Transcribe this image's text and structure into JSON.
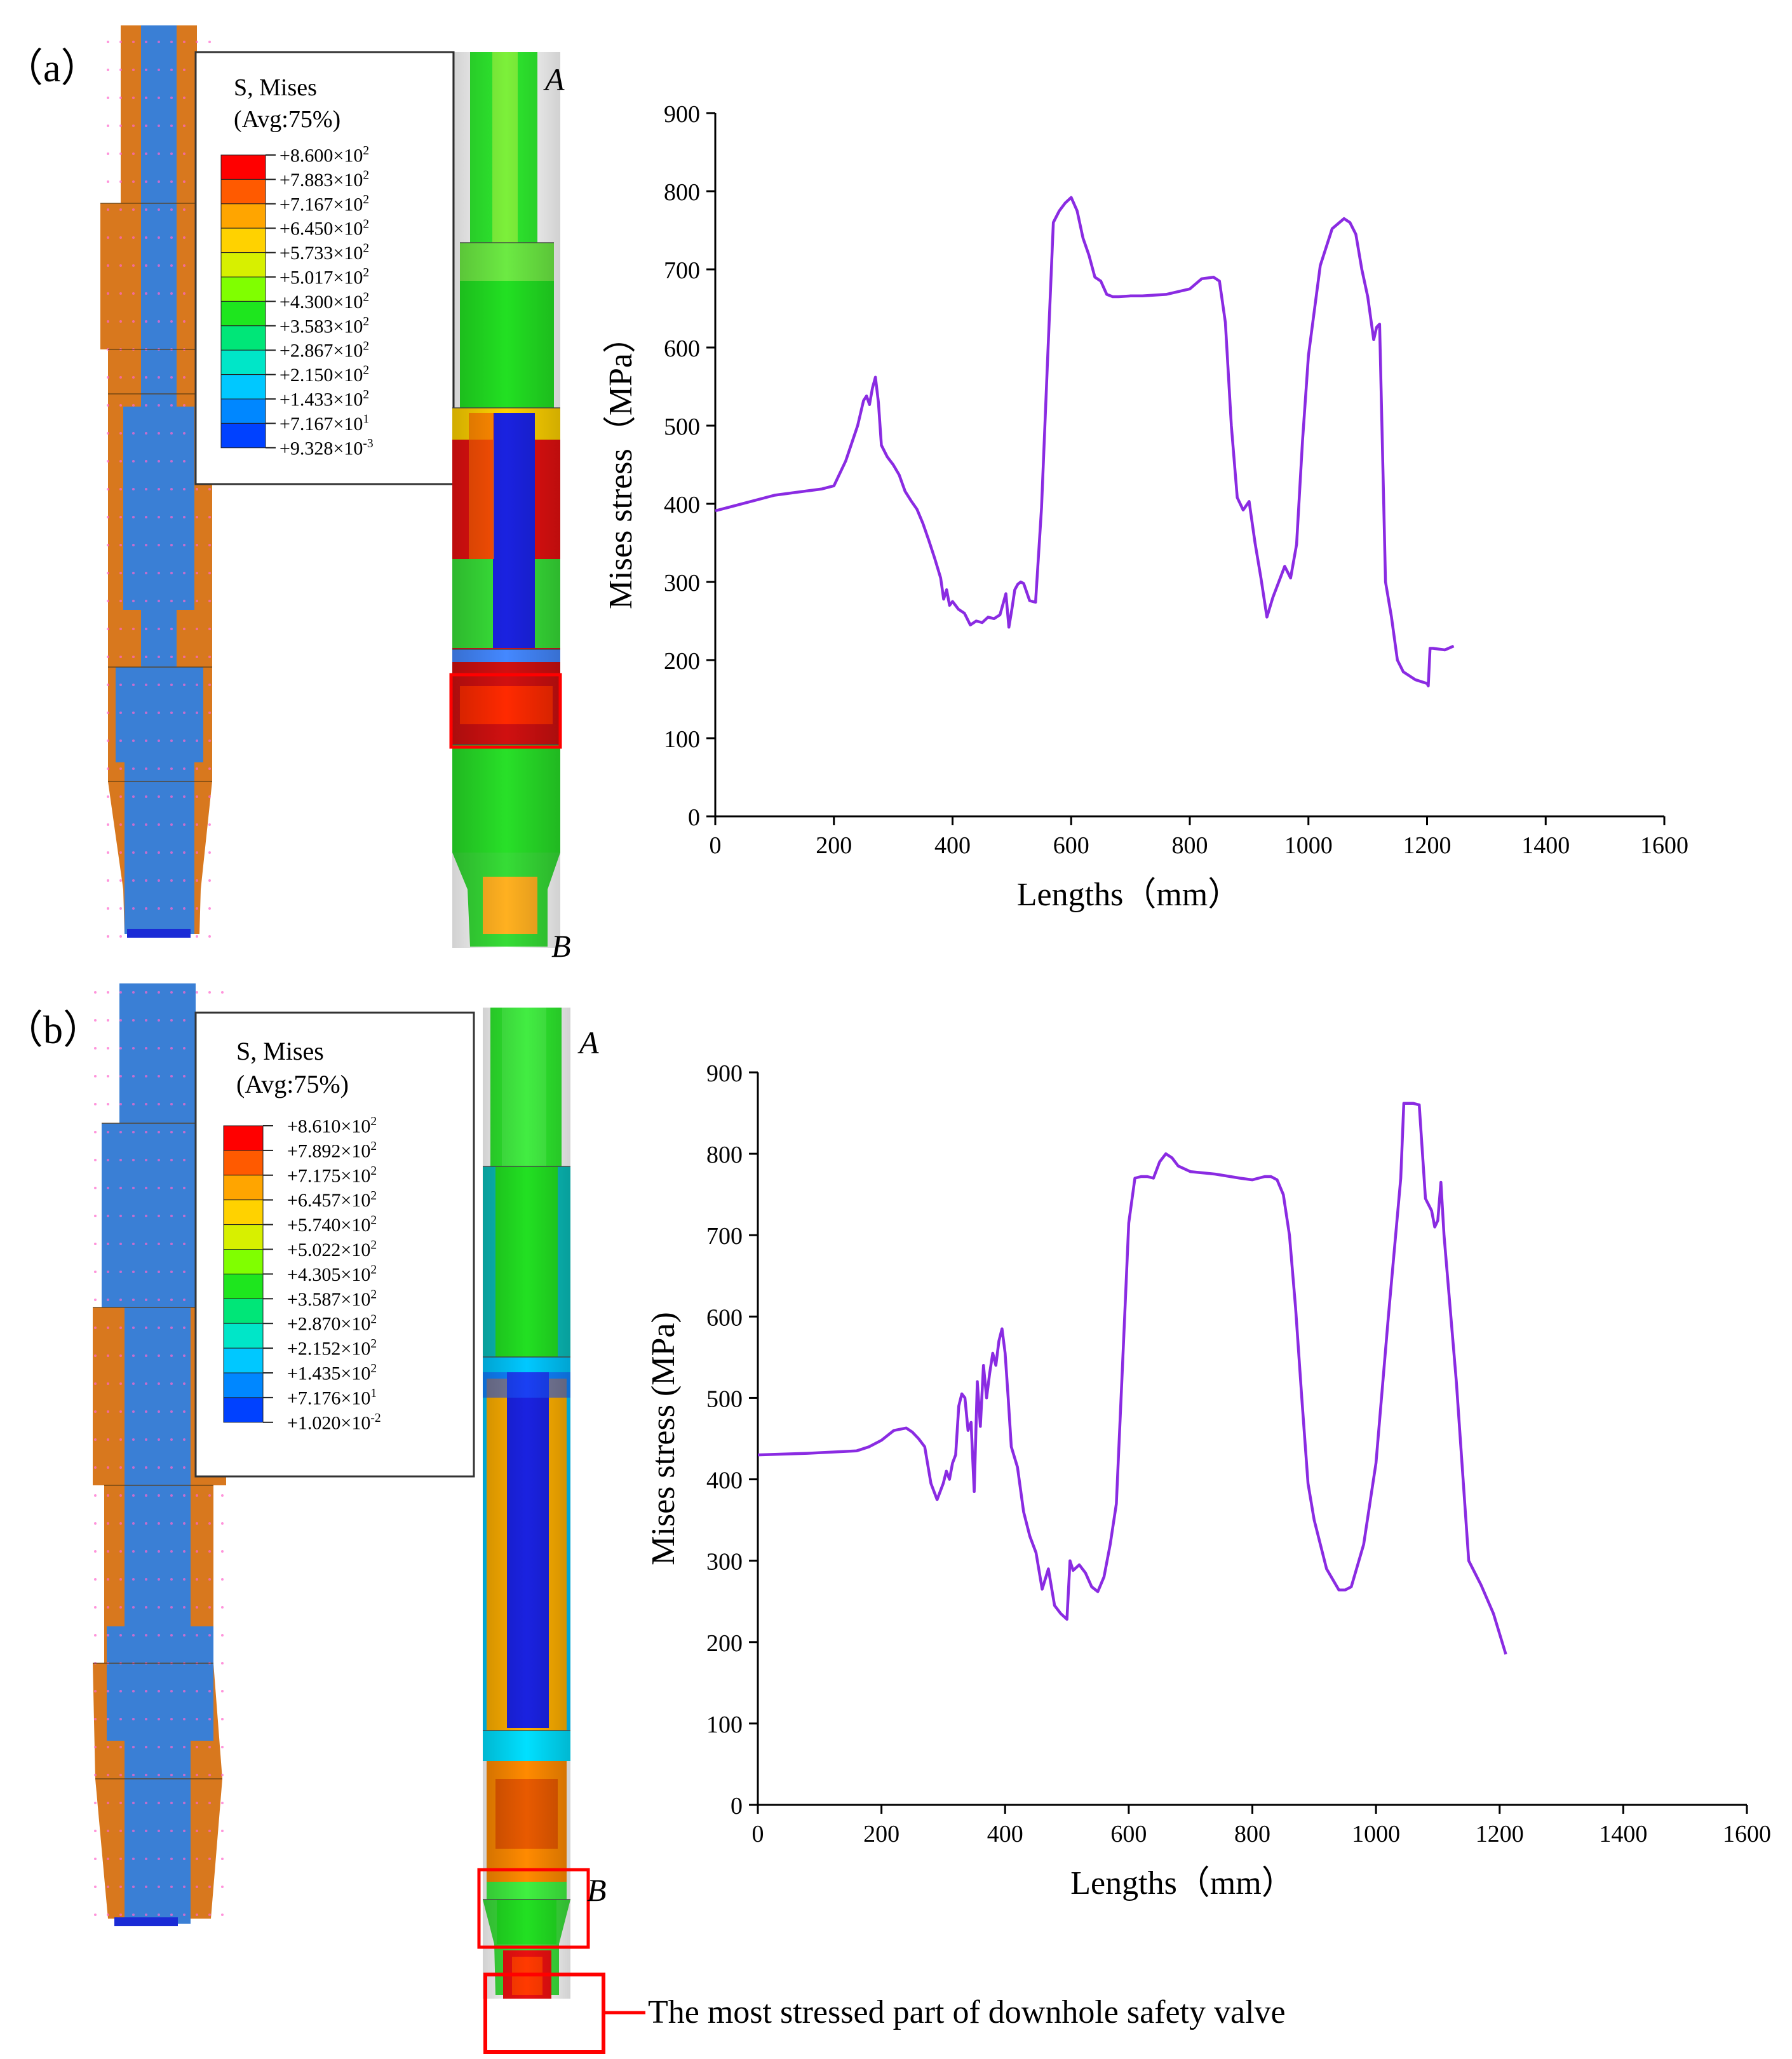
{
  "panels": [
    {
      "id": "a",
      "label": "（a）",
      "legend": {
        "title_line1": "S, Mises",
        "title_line2": "(Avg:75%)",
        "entries": [
          {
            "m": "+8.600×10",
            "e": "2"
          },
          {
            "m": "+7.883×10",
            "e": "2"
          },
          {
            "m": "+7.167×10",
            "e": "2"
          },
          {
            "m": "+6.450×10",
            "e": "2"
          },
          {
            "m": "+5.733×10",
            "e": "2"
          },
          {
            "m": "+5.017×10",
            "e": "2"
          },
          {
            "m": "+4.300×10",
            "e": "2"
          },
          {
            "m": "+3.583×10",
            "e": "2"
          },
          {
            "m": "+2.867×10",
            "e": "2"
          },
          {
            "m": "+2.150×10",
            "e": "2"
          },
          {
            "m": "+1.433×10",
            "e": "2"
          },
          {
            "m": "+7.167×10",
            "e": "1"
          },
          {
            "m": "+9.328×10",
            "e": "-3"
          }
        ]
      },
      "point_top": "A",
      "point_bottom": "B"
    },
    {
      "id": "b",
      "label": "（b）",
      "legend": {
        "title_line1": "S, Mises",
        "title_line2": "(Avg:75%)",
        "entries": [
          {
            "m": "+8.610×10",
            "e": "2"
          },
          {
            "m": "+7.892×10",
            "e": "2"
          },
          {
            "m": "+7.175×10",
            "e": "2"
          },
          {
            "m": "+6.457×10",
            "e": "2"
          },
          {
            "m": "+5.740×10",
            "e": "2"
          },
          {
            "m": "+5.022×10",
            "e": "2"
          },
          {
            "m": "+4.305×10",
            "e": "2"
          },
          {
            "m": "+3.587×10",
            "e": "2"
          },
          {
            "m": "+2.870×10",
            "e": "2"
          },
          {
            "m": "+2.152×10",
            "e": "2"
          },
          {
            "m": "+1.435×10",
            "e": "2"
          },
          {
            "m": "+7.176×10",
            "e": "1"
          },
          {
            "m": "+1.020×10",
            "e": "-2"
          }
        ]
      },
      "point_top": "A",
      "point_bottom": "B"
    }
  ],
  "contour_colors": [
    "#ff0000",
    "#ff5a00",
    "#ffa500",
    "#ffd200",
    "#d7f000",
    "#80ff00",
    "#1ee61e",
    "#00e678",
    "#00e6c8",
    "#00c8ff",
    "#0087ff",
    "#0041ff",
    "#0000ff"
  ],
  "annotation": "The most stressed part of downhole safety valve",
  "colors": {
    "line": "#8a2be2",
    "highlight": "#ff0000",
    "mesh_orange": "#d8781e",
    "mesh_blue": "#3a7fd5"
  },
  "chart_data": [
    {
      "type": "line",
      "title": "",
      "xlabel": "Lengths（mm）",
      "ylabel": "Mises stress（MPa）",
      "xlim": [
        0,
        1600
      ],
      "ylim": [
        0,
        900
      ],
      "xticks": [
        "0",
        "200",
        "400",
        "600",
        "800",
        "1000",
        "1200",
        "1400",
        "1600"
      ],
      "yticks": [
        "0",
        "100",
        "200",
        "300",
        "400",
        "500",
        "600",
        "700",
        "800",
        "900"
      ],
      "series": [
        {
          "name": "Mises stress",
          "x": [
            0,
            100,
            180,
            200,
            220,
            240,
            250,
            255,
            260,
            265,
            270,
            275,
            280,
            290,
            300,
            310,
            320,
            330,
            340,
            350,
            360,
            370,
            380,
            385,
            390,
            395,
            400,
            410,
            420,
            430,
            440,
            450,
            460,
            470,
            480,
            490,
            495,
            500,
            505,
            510,
            515,
            520,
            530,
            540,
            550,
            560,
            570,
            580,
            590,
            600,
            610,
            620,
            630,
            640,
            650,
            660,
            670,
            680,
            700,
            720,
            760,
            800,
            820,
            840,
            850,
            860,
            870,
            880,
            890,
            900,
            910,
            920,
            930,
            940,
            960,
            970,
            980,
            990,
            1000,
            1020,
            1040,
            1060,
            1070,
            1080,
            1090,
            1100,
            1110,
            1115,
            1120,
            1130,
            1140,
            1150,
            1160,
            1180,
            1200,
            1202,
            1205,
            1210,
            1230,
            1245
          ],
          "y": [
            391,
            411,
            419,
            423,
            455,
            500,
            532,
            538,
            527,
            548,
            562,
            530,
            475,
            460,
            450,
            437,
            416,
            404,
            393,
            375,
            353,
            330,
            305,
            278,
            290,
            270,
            275,
            265,
            260,
            245,
            250,
            248,
            255,
            253,
            258,
            285,
            242,
            265,
            290,
            297,
            300,
            298,
            276,
            274,
            395,
            580,
            760,
            775,
            785,
            792,
            775,
            740,
            718,
            690,
            685,
            668,
            665,
            665,
            666,
            666,
            668,
            675,
            688,
            690,
            685,
            632,
            500,
            408,
            392,
            403,
            350,
            305,
            255,
            280,
            320,
            305,
            348,
            480,
            590,
            705,
            752,
            765,
            760,
            745,
            700,
            665,
            610,
            626,
            630,
            300,
            255,
            200,
            185,
            175,
            170,
            167,
            215,
            215,
            213,
            218
          ]
        }
      ]
    },
    {
      "type": "line",
      "title": "",
      "xlabel": "Lengths（mm）",
      "ylabel": "Mises stress (MPa)",
      "xlim": [
        0,
        1600
      ],
      "ylim": [
        0,
        900
      ],
      "xticks": [
        "0",
        "200",
        "400",
        "600",
        "800",
        "1000",
        "1200",
        "1400",
        "1600"
      ],
      "yticks": [
        "0",
        "100",
        "200",
        "300",
        "400",
        "500",
        "600",
        "700",
        "800",
        "900"
      ],
      "series": [
        {
          "name": "Mises stress",
          "x": [
            0,
            80,
            160,
            180,
            200,
            220,
            240,
            250,
            260,
            270,
            280,
            290,
            300,
            305,
            310,
            315,
            320,
            325,
            330,
            335,
            340,
            345,
            350,
            355,
            360,
            365,
            370,
            375,
            380,
            385,
            390,
            395,
            400,
            405,
            410,
            420,
            430,
            440,
            450,
            460,
            470,
            480,
            490,
            500,
            505,
            510,
            520,
            530,
            540,
            550,
            560,
            570,
            580,
            590,
            600,
            610,
            620,
            630,
            640,
            650,
            660,
            670,
            680,
            700,
            740,
            780,
            800,
            820,
            830,
            840,
            850,
            860,
            870,
            880,
            890,
            900,
            920,
            940,
            950,
            960,
            980,
            1000,
            1020,
            1040,
            1045,
            1050,
            1060,
            1070,
            1080,
            1090,
            1095,
            1100,
            1105,
            1110,
            1130,
            1150,
            1170,
            1190,
            1210
          ],
          "y": [
            430,
            432,
            435,
            440,
            448,
            460,
            463,
            458,
            450,
            440,
            395,
            375,
            395,
            410,
            400,
            420,
            430,
            490,
            505,
            500,
            460,
            470,
            385,
            520,
            465,
            540,
            500,
            530,
            555,
            540,
            570,
            585,
            555,
            500,
            440,
            415,
            360,
            330,
            310,
            265,
            290,
            245,
            235,
            228,
            300,
            288,
            295,
            285,
            268,
            262,
            280,
            320,
            370,
            540,
            715,
            770,
            772,
            772,
            770,
            790,
            800,
            795,
            785,
            778,
            775,
            770,
            768,
            772,
            772,
            768,
            750,
            700,
            610,
            500,
            395,
            350,
            290,
            264,
            264,
            268,
            320,
            420,
            600,
            770,
            862,
            862,
            862,
            860,
            745,
            730,
            710,
            718,
            765,
            700,
            520,
            300,
            270,
            235,
            185
          ],
          "_note": "x values are approximate read-off data"
        }
      ]
    }
  ]
}
